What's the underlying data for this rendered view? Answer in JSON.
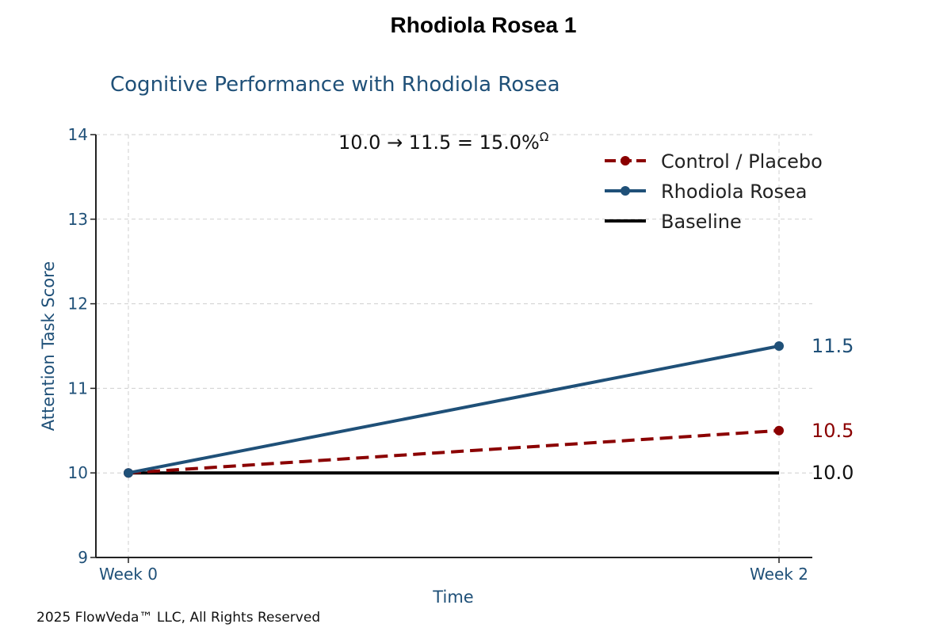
{
  "page": {
    "title": "Rhodiola Rosea 1",
    "footer": "2025 FlowVeda™ LLC, All Rights Reserved"
  },
  "chart_data": {
    "type": "line",
    "title": "Cognitive Performance with Rhodiola Rosea",
    "xlabel": "Time",
    "ylabel": "Attention Task Score",
    "categories": [
      "Week 0",
      "Week 2"
    ],
    "ylim": [
      9,
      14
    ],
    "yticks": [
      "9",
      "10",
      "11",
      "12",
      "13",
      "14"
    ],
    "grid": true,
    "legend_position": "top-right",
    "annotation": "10.0 → 11.5 = 15.0%",
    "annotation_superscript": "Ω",
    "series": [
      {
        "name": "Control / Placebo",
        "values": [
          10.0,
          10.5
        ],
        "color": "#8b0000",
        "style": "dashed",
        "markers": true,
        "end_label": "10.5"
      },
      {
        "name": "Rhodiola Rosea",
        "values": [
          10.0,
          11.5
        ],
        "color": "#1f5078",
        "style": "solid",
        "markers": true,
        "end_label": "11.5"
      },
      {
        "name": "Baseline",
        "values": [
          10.0,
          10.0
        ],
        "color": "#000000",
        "style": "solid",
        "markers": false,
        "end_label": "10.0"
      }
    ]
  }
}
